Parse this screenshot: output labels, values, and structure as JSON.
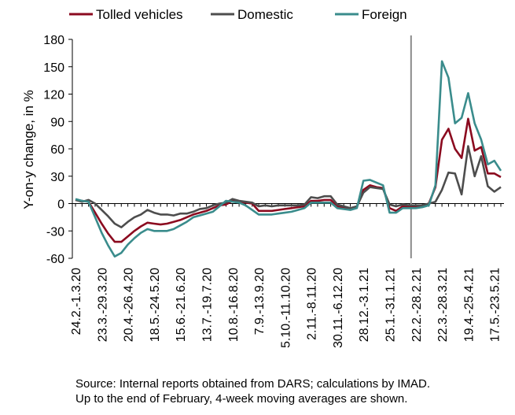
{
  "chart_data": {
    "type": "line",
    "ylabel": "Y-on-y change, in %",
    "ylim": [
      -60,
      180
    ],
    "yticks": [
      -60,
      -30,
      0,
      30,
      60,
      90,
      120,
      150,
      180
    ],
    "xtick_labels": [
      "24.2.-1.3.20",
      "23.3.-29.3.20",
      "20.4.-26.4.20",
      "18.5.-24.5.20",
      "15.6.-21.6.20",
      "13.7.-19.7.20",
      "10.8.-16.8.20",
      "7.9.-13.9.20",
      "5.10.-11.10.20",
      "2.11.-8.11.20",
      "30.11.-6.12.20",
      "28.12.-3.1.21",
      "25.1.-31.1.21",
      "22.2.-28.2.21",
      "22.3.-28.3.21",
      "19.4.-25.4.21",
      "17.5.-23.5.21"
    ],
    "xtick_index": [
      0,
      4,
      8,
      12,
      16,
      20,
      24,
      28,
      32,
      36,
      40,
      44,
      48,
      52,
      56,
      60,
      64
    ],
    "annotation_divider_index": 52,
    "legend_position": "top",
    "series": [
      {
        "name": "Tolled vehicles",
        "color": "#8b0a1f",
        "values": [
          4,
          3,
          2,
          -10,
          -22,
          -33,
          -42,
          -42,
          -36,
          -30,
          -25,
          -21,
          -22,
          -23,
          -22,
          -20,
          -18,
          -15,
          -12,
          -10,
          -8,
          -5,
          -2,
          -1,
          3,
          2,
          1,
          0,
          -8,
          -8,
          -8,
          -7,
          -6,
          -5,
          -4,
          -3,
          3,
          3,
          4,
          4,
          -3,
          -5,
          -6,
          -4,
          15,
          20,
          18,
          17,
          -5,
          -8,
          -3,
          -4,
          -4,
          -3,
          0,
          18,
          70,
          82,
          60,
          50,
          93,
          58,
          62,
          33,
          33,
          29
        ]
      },
      {
        "name": "Domestic",
        "color": "#4d4d4d",
        "values": [
          4,
          2,
          4,
          0,
          -7,
          -14,
          -22,
          -26,
          -20,
          -15,
          -12,
          -7,
          -10,
          -12,
          -12,
          -13,
          -11,
          -11,
          -9,
          -6,
          -5,
          -2,
          0,
          1,
          5,
          3,
          2,
          1,
          -3,
          -2,
          -3,
          -2,
          -2,
          -2,
          -2,
          -1,
          7,
          6,
          8,
          8,
          -1,
          -3,
          -5,
          -3,
          12,
          18,
          17,
          16,
          -1,
          -3,
          -1,
          -2,
          -2,
          -2,
          0,
          2,
          15,
          34,
          33,
          10,
          63,
          30,
          52,
          19,
          13,
          18
        ]
      },
      {
        "name": "Foreign",
        "color": "#3a8c8c",
        "values": [
          5,
          3,
          2,
          -15,
          -32,
          -46,
          -58,
          -54,
          -45,
          -38,
          -32,
          -28,
          -30,
          -30,
          -30,
          -28,
          -24,
          -20,
          -15,
          -13,
          -11,
          -9,
          -3,
          3,
          2,
          1,
          -2,
          -7,
          -12,
          -12,
          -12,
          -11,
          -10,
          -9,
          -7,
          -5,
          1,
          1,
          1,
          1,
          -5,
          -6,
          -7,
          -5,
          25,
          26,
          23,
          20,
          -10,
          -10,
          -5,
          -5,
          -5,
          -4,
          -2,
          20,
          156,
          138,
          88,
          94,
          121,
          88,
          70,
          43,
          47,
          36
        ]
      }
    ]
  },
  "footer": {
    "line1": "Source: Internal reports obtained from DARS; calculations by IMAD.",
    "line2": "Up to the end of February, 4-week moving averages are shown."
  }
}
